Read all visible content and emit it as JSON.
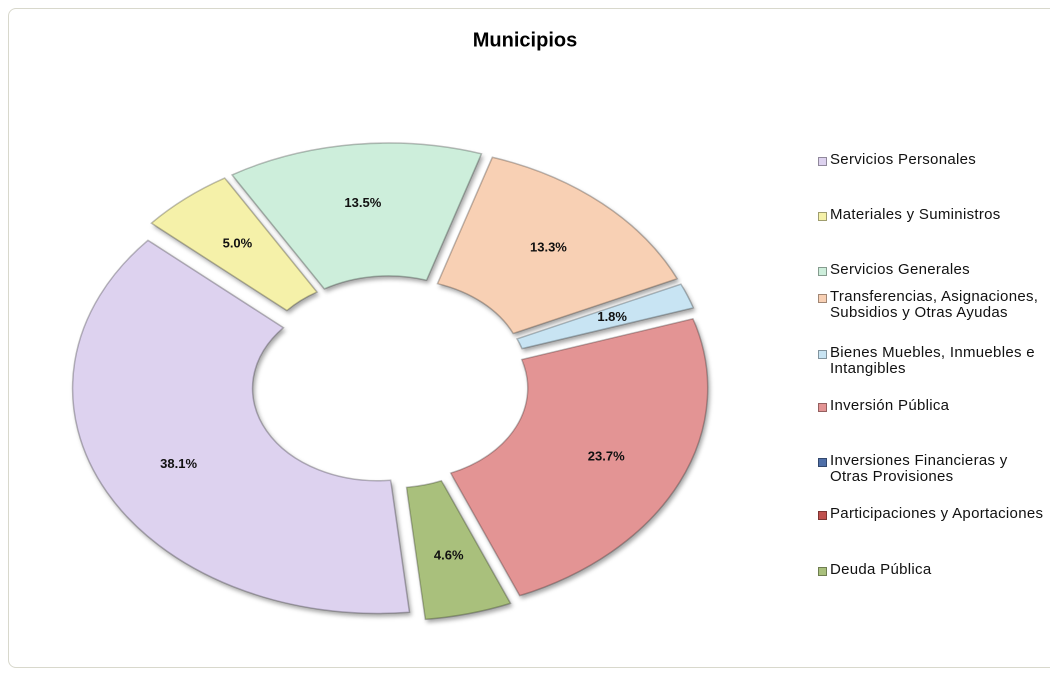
{
  "chart_data": {
    "type": "donut",
    "title": "Municipios",
    "categories": [
      "Servicios Personales",
      "Materiales y Suministros",
      "Servicios Generales",
      "Transferencias, Asignaciones, Subsidios y Otras Ayudas",
      "Bienes Muebles, Inmuebles e Intangibles",
      "Inversión Pública",
      "Inversiones Financieras y Otras Provisiones",
      "Participaciones  y Aportaciones",
      "Deuda Pública"
    ],
    "values": [
      38.1,
      5.0,
      13.5,
      13.3,
      1.8,
      23.7,
      0,
      0,
      4.6
    ],
    "value_labels": [
      "38.1%",
      "5.0%",
      "13.5%",
      "13.3%",
      "1.8%",
      "23.7%",
      null,
      null,
      "4.6%"
    ],
    "colors": [
      "#ddd2ef",
      "#f5f1a9",
      "#cdeedb",
      "#f8d0b4",
      "#c8e4f3",
      "#e39494",
      "#4f6fa8",
      "#c0504d",
      "#a9c07c"
    ],
    "legend": "right"
  }
}
